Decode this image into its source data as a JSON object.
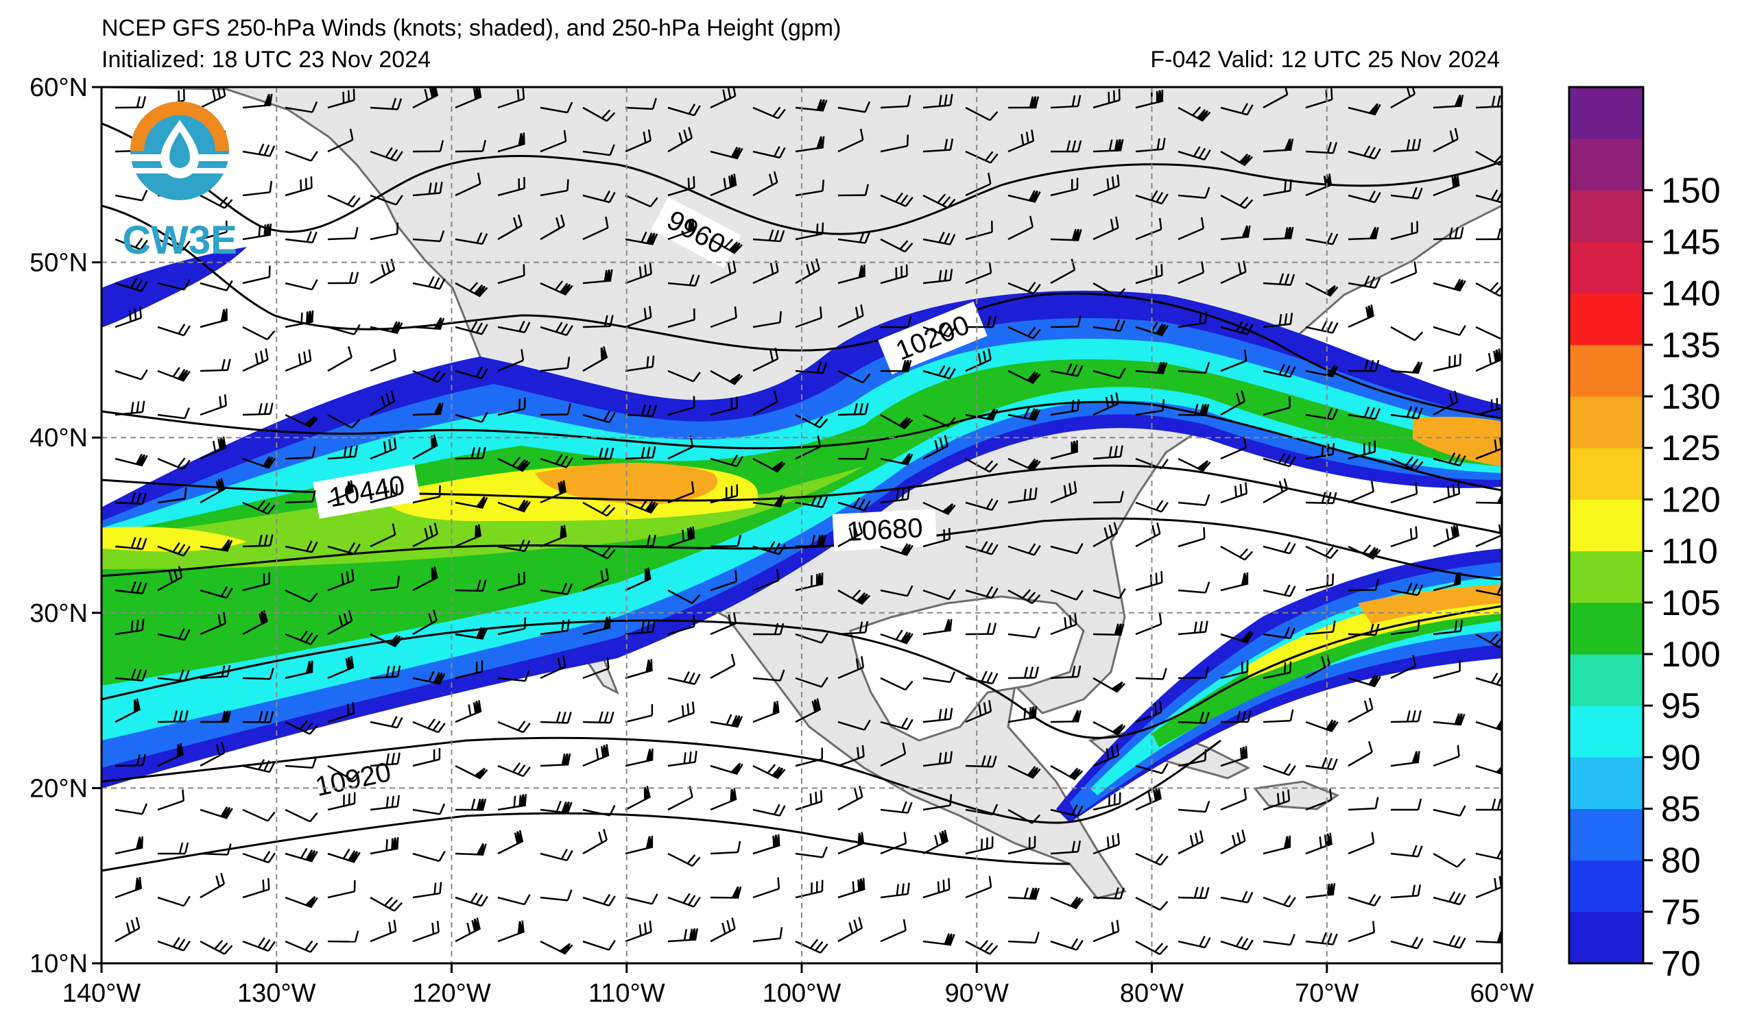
{
  "title": {
    "line1": "NCEP GFS 250-hPa Winds (knots; shaded), and 250-hPa Height (gpm)",
    "initialized": "Initialized: 18 UTC 23 Nov 2024",
    "valid": "F-042  Valid: 12 UTC 25 Nov 2024"
  },
  "logo": {
    "text": "CW3E",
    "icon": "cw3e-logo-icon"
  },
  "map": {
    "lon_range": [
      -140,
      -60
    ],
    "lat_range": [
      10,
      60
    ],
    "lon_ticks": [
      "140°W",
      "130°W",
      "120°W",
      "110°W",
      "100°W",
      "90°W",
      "80°W",
      "70°W",
      "60°W"
    ],
    "lat_ticks": [
      "60°N",
      "50°N",
      "40°N",
      "30°N",
      "20°N",
      "10°N"
    ],
    "gridlines": "dashed",
    "height_contour_labels": [
      "9960",
      "10200",
      "10440",
      "10680",
      "10920"
    ]
  },
  "colorbar": {
    "levels": [
      "70",
      "75",
      "80",
      "85",
      "90",
      "95",
      "100",
      "105",
      "110",
      "120",
      "125",
      "130",
      "135",
      "140",
      "145",
      "150"
    ],
    "colors": [
      "#1c1fd6",
      "#1a3cf0",
      "#1e6cf5",
      "#22c0f7",
      "#1ff0f0",
      "#22e0a6",
      "#1fc01f",
      "#7ad81f",
      "#f8f81c",
      "#f8cd1c",
      "#f8aa1e",
      "#f87f1e",
      "#f81e1e",
      "#d81e44",
      "#b8205a",
      "#8f2078",
      "#6e1f8c"
    ]
  }
}
